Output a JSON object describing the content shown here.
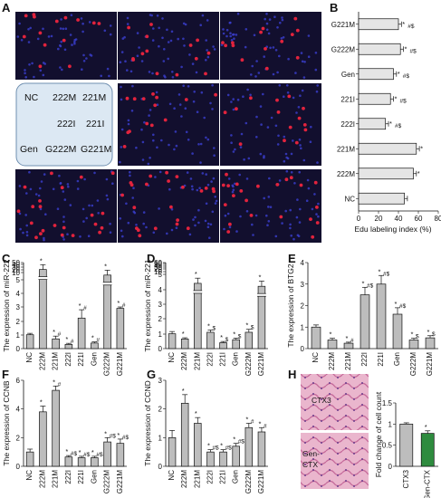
{
  "panel_letters": {
    "A": "A",
    "B": "B",
    "C": "C",
    "D": "D",
    "E": "E",
    "F": "F",
    "G": "G",
    "H": "H"
  },
  "panel_a_key": {
    "row1": [
      "NC",
      "222M",
      "221M"
    ],
    "row2": [
      "222I",
      "221I"
    ],
    "row3": [
      "Gen",
      "G222M",
      "G221M"
    ]
  },
  "panel_h_tissue_labels": {
    "top": "CTX3",
    "bottom_line1": "Gen-",
    "bottom_line2": "CTX"
  },
  "colors": {
    "bar_gray": "#bdbdbd",
    "bar_light": "#e5e5e5",
    "bar_green": "#2e8b3e",
    "key_fill": "#dce8f3",
    "key_stroke": "#6f8fb0",
    "micro_bg": "#120f2e",
    "nuclei": "#3b3fd0",
    "edu": "#e2233d"
  },
  "chart_data": [
    {
      "id": "B",
      "type": "bar",
      "orientation": "horizontal",
      "categories": [
        "G221M",
        "G222M",
        "Gen",
        "221I",
        "222I",
        "221M",
        "222M",
        "NC"
      ],
      "values": [
        40,
        42,
        35,
        32,
        27,
        58,
        55,
        46
      ],
      "errors": [
        3,
        3,
        3,
        3,
        3,
        3,
        3,
        3
      ],
      "annotations": [
        "*#$",
        "*#$",
        "*#$",
        "*#$",
        "*#$",
        "*",
        "*",
        ""
      ],
      "xlabel": "Edu labeling index (%)",
      "xticks": [
        "0",
        "20",
        "40",
        "60",
        "80"
      ],
      "xlim": [
        0,
        80
      ]
    },
    {
      "id": "C",
      "type": "bar",
      "categories": [
        "NC",
        "222M",
        "221M",
        "222I",
        "221I",
        "Gen",
        "G222M",
        "G221M"
      ],
      "values": [
        1,
        40,
        0.7,
        0.3,
        2.2,
        0.4,
        33,
        2.9
      ],
      "errors": [
        0.1,
        3,
        0.2,
        0.08,
        0.6,
        0.08,
        3,
        0.1
      ],
      "display": [
        1.0,
        5.7,
        0.7,
        0.3,
        2.2,
        0.4,
        5.3,
        2.9
      ],
      "broken": [
        false,
        true,
        false,
        false,
        false,
        false,
        true,
        false
      ],
      "annotations": [
        "",
        "*",
        "*#",
        "*#",
        "*#",
        "*#",
        "*",
        "*#"
      ],
      "ylabel": "The expression of miR-222",
      "yticks": [
        "0",
        "1",
        "2",
        "3",
        "4",
        "5",
        "10",
        "20",
        "30",
        "40",
        "50"
      ]
    },
    {
      "id": "D",
      "type": "bar",
      "categories": [
        "NC",
        "222M",
        "221M",
        "222I",
        "221I",
        "Gen",
        "G222M",
        "G221M"
      ],
      "values": [
        1,
        0.65,
        45,
        1.1,
        0.4,
        0.6,
        1.1,
        40
      ],
      "errors": [
        0.15,
        0.08,
        5,
        0.15,
        0.08,
        0.1,
        0.2,
        5
      ],
      "display": [
        1.0,
        0.65,
        4.4,
        1.1,
        0.4,
        0.6,
        1.1,
        4.2
      ],
      "broken": [
        false,
        false,
        true,
        false,
        false,
        false,
        false,
        true
      ],
      "annotations": [
        "",
        "*",
        "*",
        "*$",
        "*$",
        "*$",
        "*$",
        "*"
      ],
      "ylabel": "The expression of miR-221",
      "yticks": [
        "0",
        "1",
        "2",
        "3",
        "4",
        "5",
        "10",
        "20",
        "30",
        "40",
        "50",
        "60"
      ]
    },
    {
      "id": "E",
      "type": "bar",
      "categories": [
        "NC",
        "222M",
        "221M",
        "222I",
        "221I",
        "Gen",
        "G222M",
        "G221M"
      ],
      "values": [
        1,
        0.4,
        0.25,
        2.5,
        3.0,
        1.6,
        0.4,
        0.5
      ],
      "errors": [
        0.1,
        0.08,
        0.05,
        0.35,
        0.4,
        0.3,
        0.08,
        0.1
      ],
      "annotations": [
        "",
        "*",
        "*#",
        "*#$",
        "*#$",
        "*#$",
        "*$",
        "*$"
      ],
      "ylabel": "The expression of BTG2",
      "yticks": [
        "0",
        "1",
        "2",
        "3",
        "4"
      ],
      "ylim": [
        0,
        4
      ]
    },
    {
      "id": "F",
      "type": "bar",
      "categories": [
        "NC",
        "222M",
        "221M",
        "222I",
        "221I",
        "Gen",
        "G222M",
        "G221M"
      ],
      "values": [
        1,
        3.8,
        5.3,
        0.65,
        0.6,
        0.6,
        1.7,
        1.6
      ],
      "errors": [
        0.2,
        0.4,
        0.3,
        0.1,
        0.1,
        0.1,
        0.3,
        0.3
      ],
      "annotations": [
        "",
        "*",
        "*#",
        "*#$",
        "*#$",
        "*#$",
        "*#$",
        "*#$"
      ],
      "ylabel": "The expression of CCNB",
      "yticks": [
        "0",
        "2",
        "4",
        "6"
      ],
      "ylim": [
        0,
        6
      ]
    },
    {
      "id": "G",
      "type": "bar",
      "categories": [
        "NC",
        "222M",
        "221M",
        "222I",
        "221I",
        "Gen",
        "G222M",
        "G221M"
      ],
      "values": [
        1,
        2.2,
        1.5,
        0.5,
        0.5,
        0.7,
        1.35,
        1.2
      ],
      "errors": [
        0.25,
        0.3,
        0.2,
        0.08,
        0.08,
        0.1,
        0.15,
        0.15
      ],
      "annotations": [
        "",
        "*",
        "*",
        "*#$",
        "*#$",
        "*#$",
        "*#",
        "*#"
      ],
      "ylabel": "The expression of CCND",
      "yticks": [
        "0",
        "1",
        "2",
        "3"
      ],
      "ylim": [
        0,
        3
      ]
    },
    {
      "id": "H",
      "type": "bar",
      "categories": [
        "CTX3",
        "Gen-CTX"
      ],
      "values": [
        1.0,
        0.78
      ],
      "errors": [
        0.03,
        0.06
      ],
      "annotations": [
        "",
        "*"
      ],
      "ylabel": "Fold change of cell count",
      "yticks": [
        "0",
        "0.5",
        "1",
        "1.5"
      ],
      "ylim": [
        0,
        1.5
      ]
    }
  ]
}
